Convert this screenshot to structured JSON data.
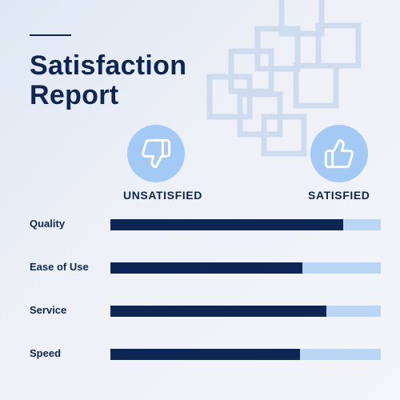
{
  "title_lines": [
    "Satisfaction",
    "Report"
  ],
  "scale": {
    "low_label": "UNSATISFIED",
    "high_label": "SATISFIED",
    "low_icon": "thumbs-down-icon",
    "high_icon": "thumbs-up-icon"
  },
  "colors": {
    "bar_fill": "#0d2654",
    "bar_track": "#b9d6f7",
    "badge": "#a3c9f5",
    "text": "#0d2654"
  },
  "chart_data": {
    "type": "bar",
    "orientation": "horizontal",
    "categories": [
      "Quality",
      "Ease of Use",
      "Service",
      "Speed"
    ],
    "values": [
      86,
      71,
      80,
      70
    ],
    "xlim": [
      0,
      100
    ],
    "grid": false
  }
}
